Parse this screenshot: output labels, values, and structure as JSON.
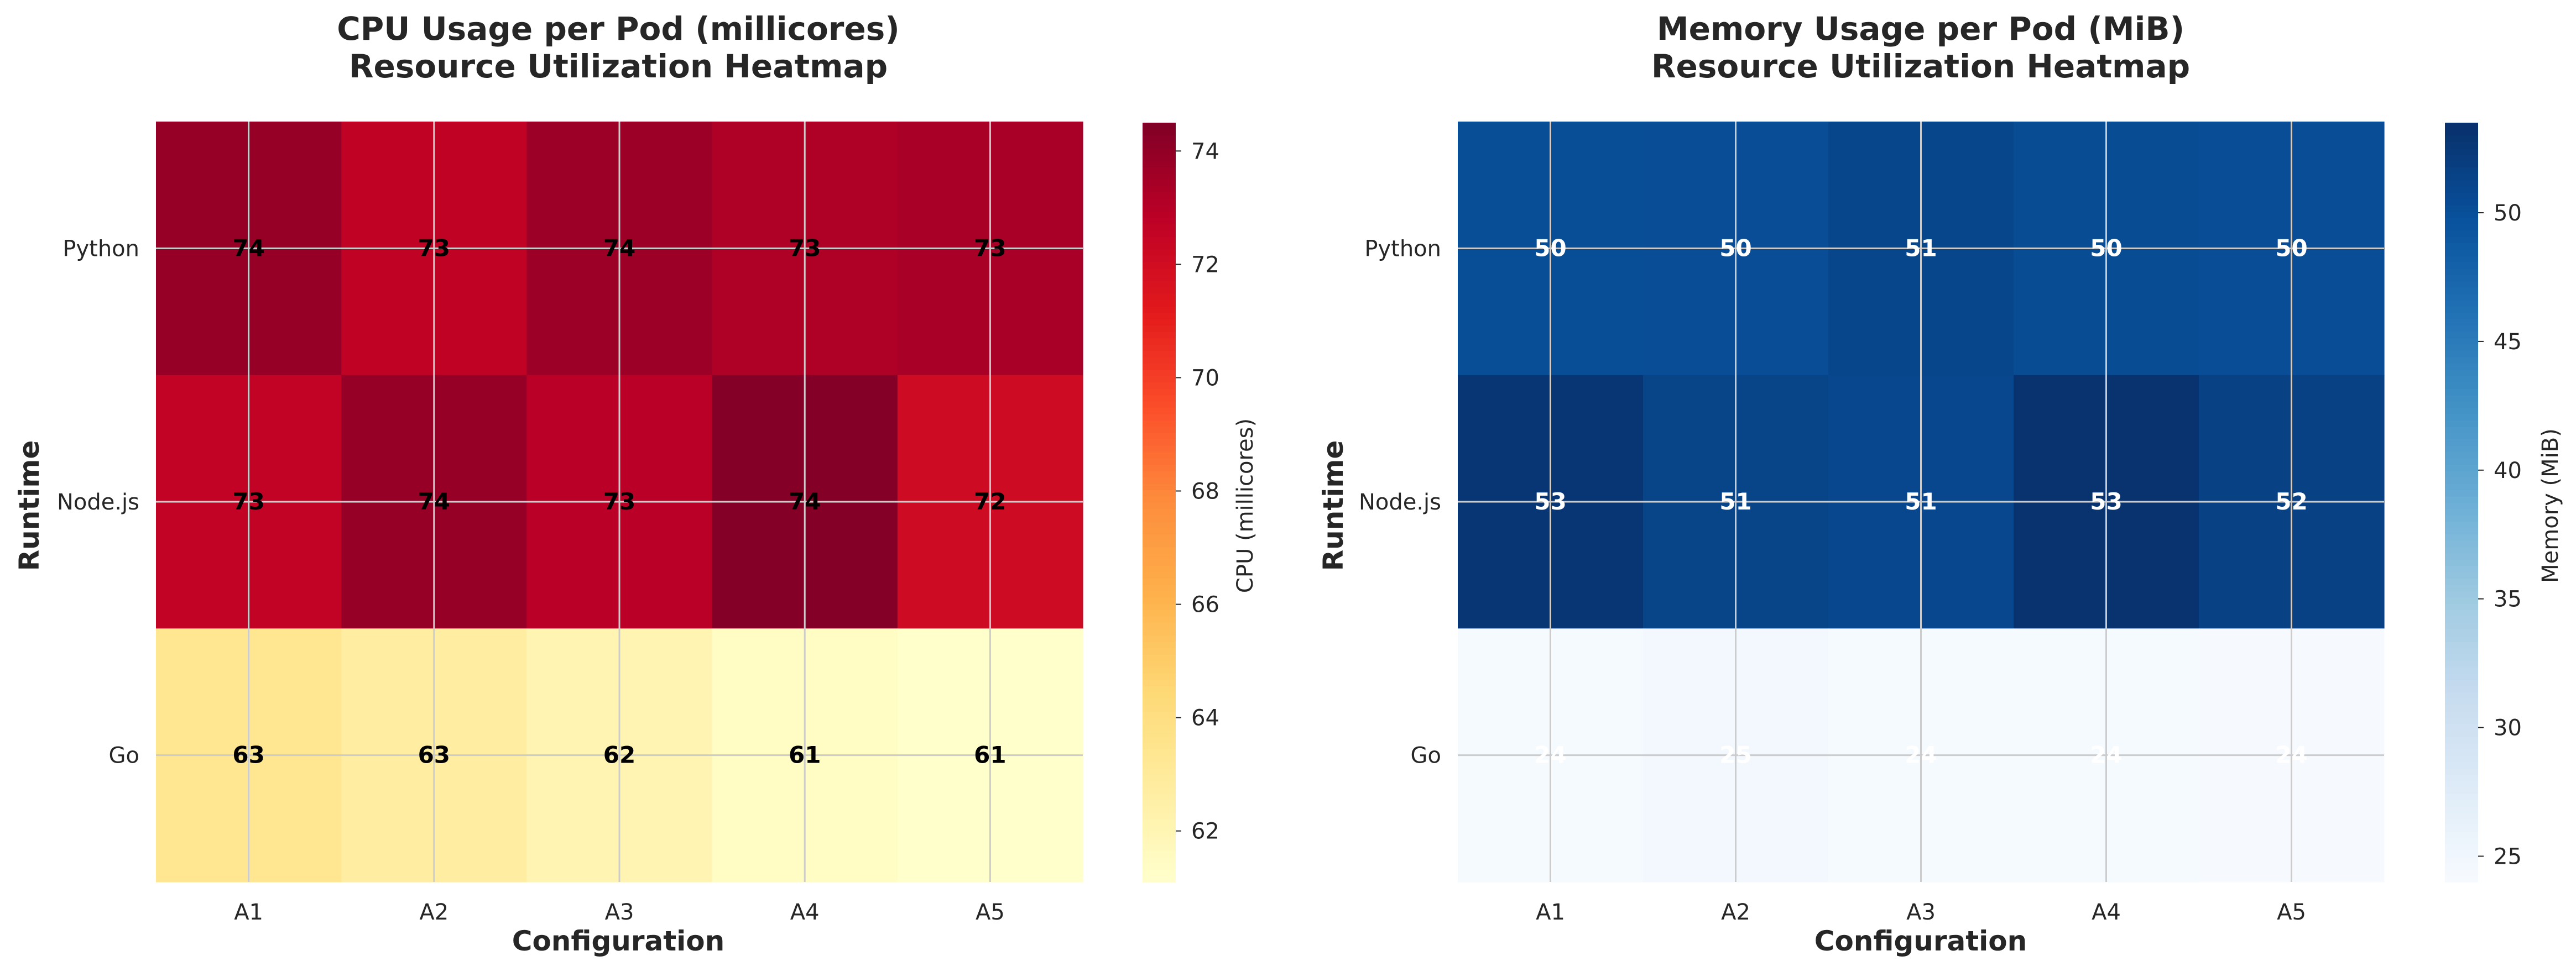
{
  "chart_data": [
    {
      "type": "heatmap",
      "title": "CPU Usage per Pod (millicores)",
      "subtitle": "Resource Utilization Heatmap",
      "xlabel": "Configuration",
      "ylabel": "Runtime",
      "categories": [
        "A1",
        "A2",
        "A3",
        "A4",
        "A5"
      ],
      "rows": [
        "Python",
        "Node.js",
        "Go"
      ],
      "values": [
        [
          73.9,
          72.7,
          73.7,
          73.2,
          73.4
        ],
        [
          72.6,
          73.9,
          72.9,
          74.4,
          72.1
        ],
        [
          63.4,
          62.7,
          62.1,
          61.4,
          61.1
        ]
      ],
      "cell_labels": [
        [
          "74",
          "73",
          "74",
          "73",
          "73"
        ],
        [
          "73",
          "74",
          "73",
          "74",
          "72"
        ],
        [
          "63",
          "63",
          "62",
          "61",
          "61"
        ]
      ],
      "colorbar": {
        "label": "CPU (millicores)",
        "range": [
          61.1,
          74.5
        ],
        "ticks": [
          "62",
          "64",
          "66",
          "68",
          "70",
          "72",
          "74"
        ],
        "tick_values": [
          62,
          64,
          66,
          68,
          70,
          72,
          74
        ]
      },
      "colormap": "YlOrRd",
      "colormap_stops": [
        "#ffffcc",
        "#ffeda0",
        "#fed976",
        "#feb24c",
        "#fd8d3c",
        "#fc4e2a",
        "#e31a1c",
        "#bd0026",
        "#800026"
      ],
      "label_color": "#000000",
      "grid": true
    },
    {
      "type": "heatmap",
      "title": "Memory Usage per Pod (MiB)",
      "subtitle": "Resource Utilization Heatmap",
      "xlabel": "Configuration",
      "ylabel": "Runtime",
      "categories": [
        "A1",
        "A2",
        "A3",
        "A4",
        "A5"
      ],
      "rows": [
        "Python",
        "Node.js",
        "Go"
      ],
      "values": [
        [
          50.2,
          50.3,
          51.0,
          50.4,
          50.3
        ],
        [
          52.8,
          51.3,
          50.9,
          53.2,
          51.6
        ],
        [
          24.3,
          24.6,
          24.3,
          24.3,
          24.2
        ]
      ],
      "cell_labels": [
        [
          "50",
          "50",
          "51",
          "50",
          "50"
        ],
        [
          "53",
          "51",
          "51",
          "53",
          "52"
        ],
        [
          "24",
          "25",
          "24",
          "24",
          "24"
        ]
      ],
      "colorbar": {
        "label": "Memory (MiB)",
        "range": [
          24.0,
          53.5
        ],
        "ticks": [
          "25",
          "30",
          "35",
          "40",
          "45",
          "50"
        ],
        "tick_values": [
          25,
          30,
          35,
          40,
          45,
          50
        ]
      },
      "colormap": "Blues",
      "colormap_stops": [
        "#f7fbff",
        "#deebf7",
        "#c6dbef",
        "#9ecae1",
        "#6baed6",
        "#4292c6",
        "#2171b5",
        "#08519c",
        "#08306b"
      ],
      "label_color": "#ffffff",
      "grid": true
    }
  ]
}
